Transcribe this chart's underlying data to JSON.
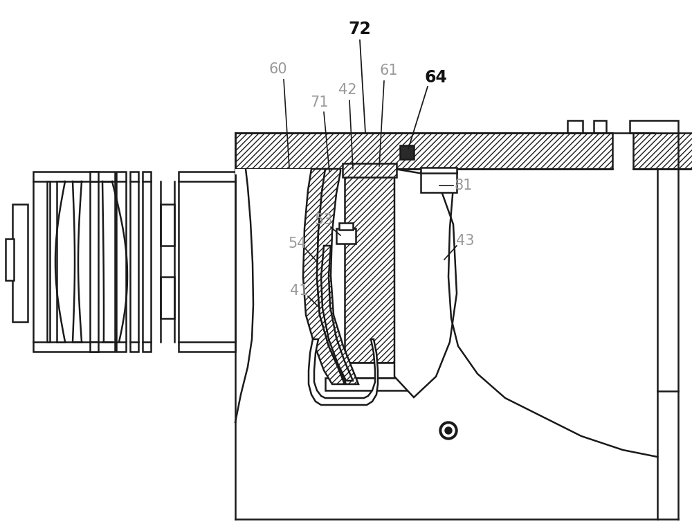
{
  "bg_color": "#ffffff",
  "line_color": "#1a1a1a",
  "label_color_light": "#999999",
  "label_color_bold": "#111111",
  "figsize": [
    10.0,
    7.57
  ],
  "dpi": 100
}
